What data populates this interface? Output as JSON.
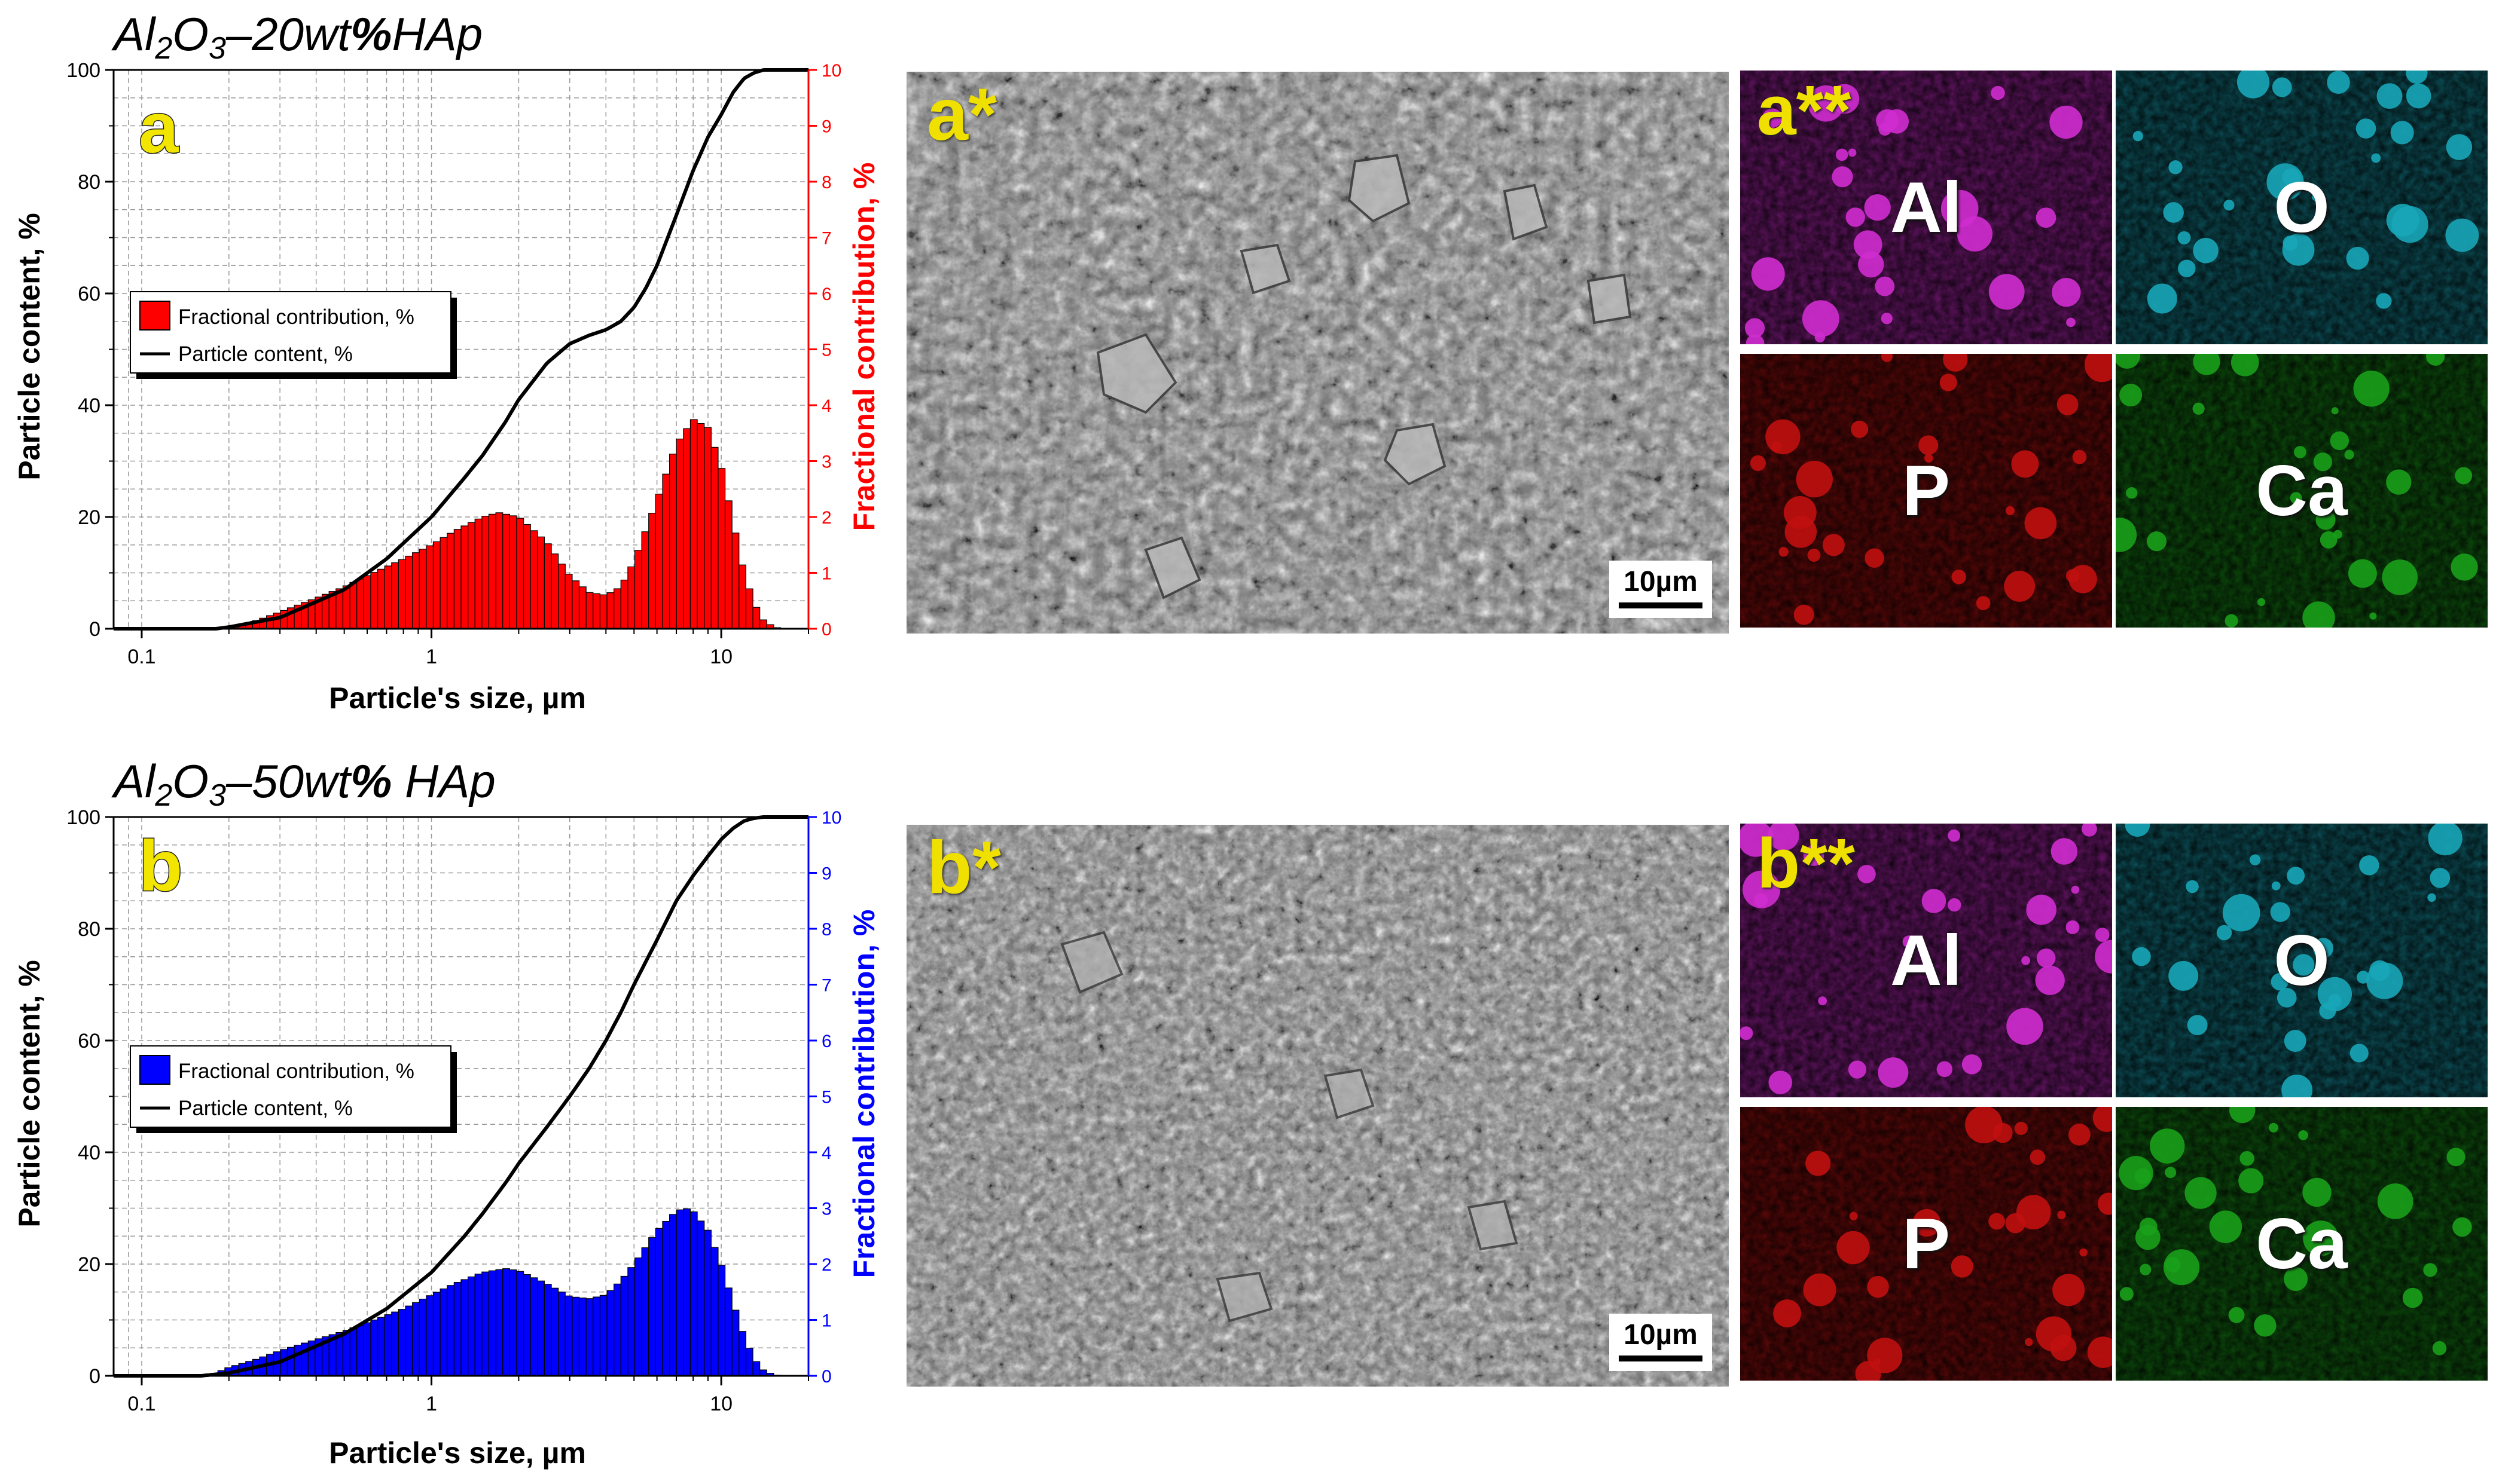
{
  "colors": {
    "series_a": "#ff0000",
    "series_b": "#0000ff",
    "cumulative_line": "#000000",
    "map_al": "#d02cd0",
    "map_o": "#18a6b8",
    "map_p": "#c01010",
    "map_ca": "#1aa01a",
    "letter_yellow": "#f0e000"
  },
  "icons": {
    "scale_bar": "scale-bar-icon",
    "legend_bar_swatch": "square-swatch",
    "legend_line_swatch": "line-swatch"
  },
  "chart_data": [
    {
      "type": "bar",
      "panel_letter": "a",
      "title_parts": [
        "Al",
        "2",
        "O",
        "3",
        "–20wt",
        "%",
        "HAp"
      ],
      "xlabel": "Particle's size, µm",
      "ylabel_left": "Particle content, %",
      "ylabel_right": "Fractional contribution, %",
      "x_scale": "log",
      "xlim": [
        0.08,
        20
      ],
      "x_ticks": [
        "0.1",
        "1",
        "10"
      ],
      "ylim_left": [
        0,
        100
      ],
      "ylim_right": [
        0,
        10
      ],
      "y_ticks_left": [
        "0",
        "20",
        "40",
        "60",
        "80",
        "100"
      ],
      "y_ticks_right": [
        "0",
        "1",
        "2",
        "3",
        "4",
        "5",
        "6",
        "7",
        "8",
        "9",
        "10"
      ],
      "grid": true,
      "legend": {
        "placement": "center-left",
        "entries": [
          "Fractional contribution, %",
          "Particle content, %"
        ]
      },
      "bar_color": "#ff0000",
      "fractional_contribution": {
        "x": [
          0.2,
          0.25,
          0.3,
          0.4,
          0.5,
          0.6,
          0.8,
          1.0,
          1.2,
          1.5,
          1.7,
          2.0,
          2.5,
          3.0,
          3.5,
          4.0,
          4.5,
          5.0,
          6.0,
          7.0,
          8.0,
          9.0,
          10.0,
          11.0,
          12.0,
          13.0,
          14.0,
          15.0,
          16.0
        ],
        "values": [
          0.0,
          0.15,
          0.3,
          0.55,
          0.75,
          0.95,
          1.25,
          1.5,
          1.75,
          2.0,
          2.08,
          2.0,
          1.55,
          0.95,
          0.65,
          0.6,
          0.75,
          1.2,
          2.3,
          3.3,
          3.75,
          3.6,
          2.9,
          1.9,
          1.0,
          0.45,
          0.15,
          0.05,
          0.0
        ]
      },
      "particle_content": {
        "x": [
          0.18,
          0.2,
          0.3,
          0.5,
          0.7,
          1.0,
          1.3,
          1.5,
          1.8,
          2.0,
          2.5,
          3.0,
          3.5,
          4.0,
          4.5,
          5.0,
          5.5,
          6.0,
          7.0,
          8.0,
          9.0,
          10.0,
          11.0,
          12.0,
          13.0,
          14.0,
          16.0,
          20.0
        ],
        "values": [
          0,
          0.3,
          2,
          7,
          12.5,
          20,
          27,
          31,
          37,
          41,
          47.5,
          51,
          52.5,
          53.5,
          55,
          57.5,
          61,
          65,
          74,
          82,
          88,
          92,
          96,
          98.5,
          99.5,
          100,
          100,
          100
        ]
      }
    },
    {
      "type": "bar",
      "panel_letter": "b",
      "title_parts": [
        "Al",
        "2",
        "O",
        "3",
        "–50wt",
        "%",
        " HAp"
      ],
      "xlabel": "Particle's size, µm",
      "ylabel_left": "Particle content, %",
      "ylabel_right": "Fractional contribution, %",
      "x_scale": "log",
      "xlim": [
        0.08,
        20
      ],
      "x_ticks": [
        "0.1",
        "1",
        "10"
      ],
      "ylim_left": [
        0,
        100
      ],
      "ylim_right": [
        0,
        10
      ],
      "y_ticks_left": [
        "0",
        "20",
        "40",
        "60",
        "80",
        "100"
      ],
      "y_ticks_right": [
        "0",
        "1",
        "2",
        "3",
        "4",
        "5",
        "6",
        "7",
        "8",
        "9",
        "10"
      ],
      "grid": true,
      "legend": {
        "placement": "center-left",
        "entries": [
          "Fractional contribution, %",
          "Particle content, %"
        ]
      },
      "bar_color": "#0000ff",
      "fractional_contribution": {
        "x": [
          0.17,
          0.2,
          0.25,
          0.3,
          0.4,
          0.5,
          0.6,
          0.8,
          1.0,
          1.2,
          1.5,
          1.8,
          2.0,
          2.5,
          3.0,
          3.5,
          4.0,
          4.5,
          5.0,
          6.0,
          7.0,
          7.5,
          8.0,
          9.0,
          10.0,
          11.0,
          12.0,
          13.0,
          14.0,
          15.0,
          16.0
        ],
        "values": [
          0.0,
          0.15,
          0.3,
          0.45,
          0.65,
          0.8,
          0.95,
          1.2,
          1.45,
          1.65,
          1.85,
          1.92,
          1.88,
          1.65,
          1.42,
          1.38,
          1.45,
          1.7,
          2.0,
          2.6,
          2.95,
          3.0,
          2.95,
          2.6,
          2.0,
          1.3,
          0.7,
          0.3,
          0.1,
          0.03,
          0.0
        ]
      },
      "particle_content": {
        "x": [
          0.16,
          0.2,
          0.3,
          0.5,
          0.7,
          1.0,
          1.3,
          1.5,
          1.8,
          2.0,
          2.5,
          3.0,
          3.5,
          4.0,
          4.5,
          5.0,
          6.0,
          7.0,
          8.0,
          9.0,
          10.0,
          11.0,
          12.0,
          13.0,
          14.0,
          16.0,
          20.0
        ],
        "values": [
          0,
          0.5,
          2.5,
          7.5,
          12,
          18.5,
          25,
          29,
          34.5,
          38,
          44.5,
          50,
          55,
          60,
          65,
          70,
          78,
          85,
          89.5,
          93,
          96,
          98,
          99.3,
          99.8,
          100,
          100,
          100
        ]
      }
    }
  ],
  "sem_images": [
    {
      "label": "a*",
      "scale_bar": "10µm"
    },
    {
      "label": "b*",
      "scale_bar": "10µm"
    }
  ],
  "eds_maps": [
    {
      "group": "a",
      "label": "a**",
      "element": "Al",
      "color": "#d02cd0"
    },
    {
      "group": "a",
      "label": "",
      "element": "O",
      "color": "#18a6b8"
    },
    {
      "group": "a",
      "label": "",
      "element": "P",
      "color": "#c01010"
    },
    {
      "group": "a",
      "label": "",
      "element": "Ca",
      "color": "#1aa01a"
    },
    {
      "group": "b",
      "label": "b**",
      "element": "Al",
      "color": "#d02cd0"
    },
    {
      "group": "b",
      "label": "",
      "element": "O",
      "color": "#18a6b8"
    },
    {
      "group": "b",
      "label": "",
      "element": "P",
      "color": "#c01010"
    },
    {
      "group": "b",
      "label": "",
      "element": "Ca",
      "color": "#1aa01a"
    }
  ]
}
